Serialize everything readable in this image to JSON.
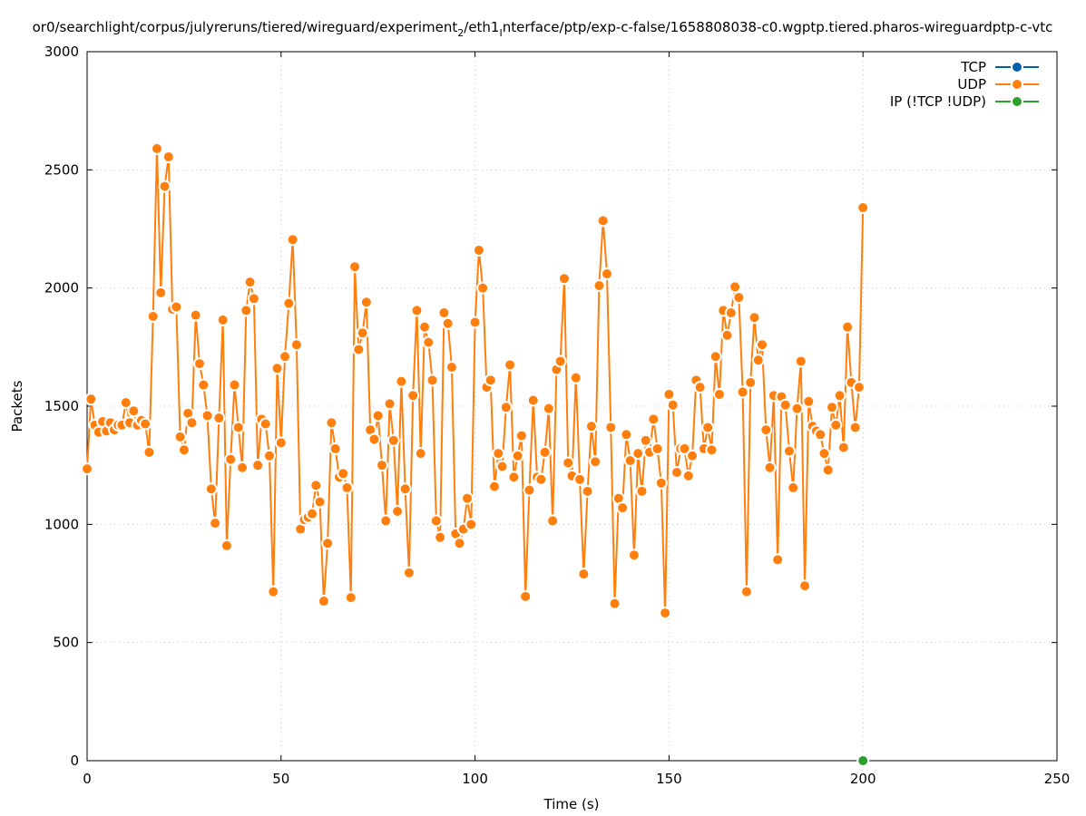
{
  "chart_data": {
    "type": "line",
    "title": "or0/searchlight/corpus/julyreruns/tiered/wireguard/experiment_2/eth1_interface/ptp/exp-c-false/1658808038-c0.wgptp.tiered.pharos-wireguardptp-c-vtc",
    "title_parts": {
      "a": "or0/searchlight/corpus/julyreruns/tiered/wireguard/experiment",
      "sub1": "2",
      "b": "/eth1",
      "sub2": "I",
      "c": "nterface/ptp/exp-c-false/1658808038-c0.wgptp.tiered.pharos-wireguardptp-c-vtc"
    },
    "xlabel": "Time (s)",
    "ylabel": "Packets",
    "xlim": [
      0,
      250
    ],
    "ylim": [
      0,
      3000
    ],
    "xticks": [
      0,
      50,
      100,
      150,
      200,
      250
    ],
    "yticks": [
      0,
      500,
      1000,
      1500,
      2000,
      2500,
      3000
    ],
    "xtick_labels": [
      "0",
      "50",
      "100",
      "150",
      "200",
      "250"
    ],
    "ytick_labels": [
      "0",
      "500",
      "1000",
      "1500",
      "2000",
      "2500",
      "3000"
    ],
    "grid": true,
    "legend_position": "top-right",
    "series": [
      {
        "name": "TCP",
        "color": "#0060ad",
        "x": [],
        "y": []
      },
      {
        "name": "UDP",
        "color": "#ff7f0e",
        "x": [
          0,
          1,
          2,
          3,
          4,
          5,
          6,
          7,
          8,
          9,
          10,
          11,
          12,
          13,
          14,
          15,
          16,
          17,
          18,
          19,
          20,
          21,
          22,
          23,
          24,
          25,
          26,
          27,
          28,
          29,
          30,
          31,
          32,
          33,
          34,
          35,
          36,
          37,
          38,
          39,
          40,
          41,
          42,
          43,
          44,
          45,
          46,
          47,
          48,
          49,
          50,
          51,
          52,
          53,
          54,
          55,
          56,
          57,
          58,
          59,
          60,
          61,
          62,
          63,
          64,
          65,
          66,
          67,
          68,
          69,
          70,
          71,
          72,
          73,
          74,
          75,
          76,
          77,
          78,
          79,
          80,
          81,
          82,
          83,
          84,
          85,
          86,
          87,
          88,
          89,
          90,
          91,
          92,
          93,
          94,
          95,
          96,
          97,
          98,
          99,
          100,
          101,
          102,
          103,
          104,
          105,
          106,
          107,
          108,
          109,
          110,
          111,
          112,
          113,
          114,
          115,
          116,
          117,
          118,
          119,
          120,
          121,
          122,
          123,
          124,
          125,
          126,
          127,
          128,
          129,
          130,
          131,
          132,
          133,
          134,
          135,
          136,
          137,
          138,
          139,
          140,
          141,
          142,
          143,
          144,
          145,
          146,
          147,
          148,
          149,
          150,
          151,
          152,
          153,
          154,
          155,
          156,
          157,
          158,
          159,
          160,
          161,
          162,
          163,
          164,
          165,
          166,
          167,
          168,
          169,
          170,
          171,
          172,
          173,
          174,
          175,
          176,
          177,
          178,
          179,
          180,
          181,
          182,
          183,
          184,
          185,
          186,
          187,
          188,
          189,
          190,
          191,
          192,
          193,
          194,
          195,
          196,
          197,
          198,
          199,
          200
        ],
        "y": [
          1235,
          1530,
          1420,
          1390,
          1435,
          1395,
          1430,
          1400,
          1420,
          1420,
          1515,
          1430,
          1480,
          1420,
          1440,
          1425,
          1305,
          1880,
          2590,
          1980,
          2430,
          2555,
          1910,
          1920,
          1370,
          1315,
          1470,
          1430,
          1885,
          1680,
          1590,
          1460,
          1150,
          1005,
          1450,
          1865,
          910,
          1275,
          1590,
          1410,
          1240,
          1905,
          2025,
          1955,
          1250,
          1445,
          1425,
          1290,
          715,
          1660,
          1345,
          1710,
          1935,
          2205,
          1760,
          980,
          1020,
          1030,
          1045,
          1165,
          1095,
          675,
          920,
          1430,
          1320,
          1200,
          1215,
          1155,
          690,
          2090,
          1740,
          1810,
          1940,
          1400,
          1360,
          1460,
          1250,
          1015,
          1510,
          1355,
          1055,
          1605,
          1150,
          795,
          1545,
          1905,
          1300,
          1835,
          1770,
          1610,
          1015,
          945,
          1895,
          1850,
          1665,
          960,
          920,
          980,
          1110,
          1000,
          1855,
          2160,
          2000,
          1580,
          1610,
          1160,
          1300,
          1245,
          1495,
          1675,
          1200,
          1290,
          1375,
          695,
          1145,
          1525,
          1200,
          1190,
          1305,
          1490,
          1015,
          1655,
          1690,
          2040,
          1260,
          1205,
          1620,
          1190,
          790,
          1140,
          1415,
          1265,
          2010,
          2285,
          2060,
          1410,
          665,
          1110,
          1070,
          1380,
          1270,
          870,
          1300,
          1140,
          1355,
          1305,
          1445,
          1320,
          1175,
          625,
          1550,
          1505,
          1220,
          1320,
          1320,
          1205,
          1290,
          1610,
          1580,
          1320,
          1410,
          1315,
          1710,
          1550,
          1905,
          1800,
          1895,
          2005,
          1960,
          1560,
          715,
          1600,
          1875,
          1695,
          1760,
          1400,
          1240,
          1545,
          850,
          1540,
          1505,
          1310,
          1155,
          1490,
          1690,
          740,
          1520,
          1415,
          1395,
          1380,
          1300,
          1230,
          1495,
          1420,
          1545,
          1325,
          1835,
          1600,
          1410,
          1580,
          2340
        ]
      },
      {
        "name": "IP (!TCP  !UDP)",
        "color": "#2ca02c",
        "x": [
          200
        ],
        "y": [
          0
        ]
      }
    ]
  }
}
